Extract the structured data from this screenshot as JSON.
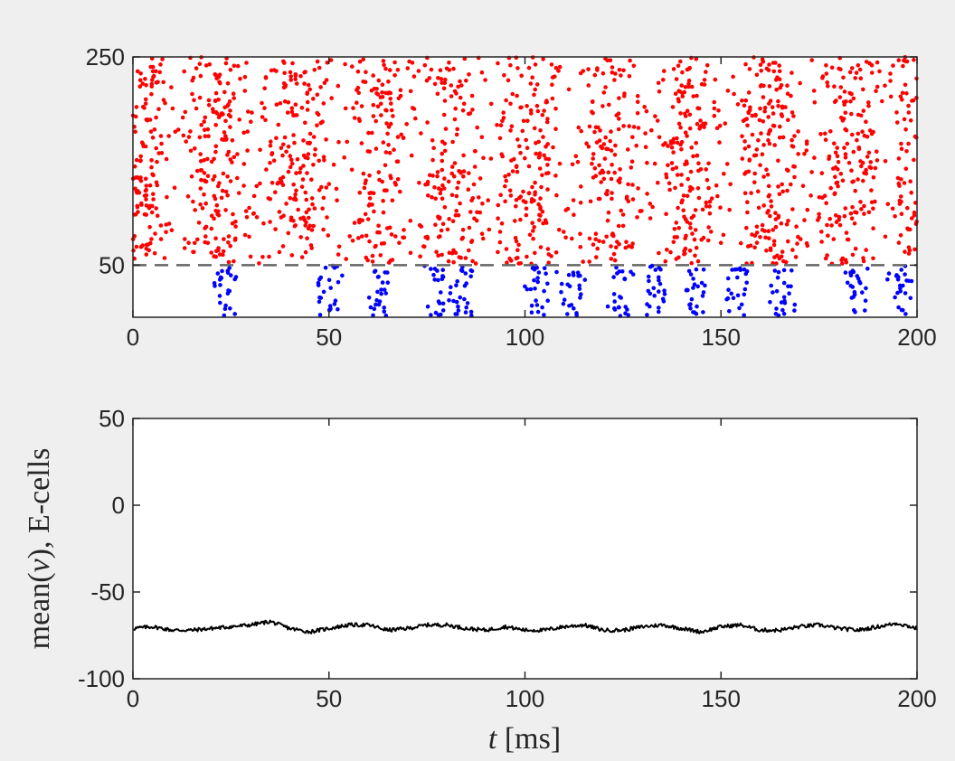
{
  "chart_data": [
    {
      "type": "scatter",
      "title": "",
      "xlabel": "",
      "ylabel": "",
      "xlim": [
        0,
        200
      ],
      "ylim": [
        0,
        250
      ],
      "x_ticks": [
        "0",
        "50",
        "100",
        "150",
        "200"
      ],
      "y_ticks": [
        "50",
        "250"
      ],
      "reference_line": {
        "y": 50,
        "style": "dashed",
        "color": "#666666"
      },
      "grid": false,
      "series": [
        {
          "color": "#ff0000",
          "y_range": [
            51,
            250
          ],
          "approx_spike_count": 1800,
          "rhythm_period_ms": 20
        },
        {
          "color": "#0000ff",
          "y_range": [
            1,
            50
          ],
          "approx_spike_count": 330,
          "bursts_ms": [
            24,
            50,
            63,
            78,
            84,
            103,
            112,
            125,
            133,
            143,
            155,
            165,
            185,
            196
          ]
        }
      ]
    },
    {
      "type": "line",
      "title": "",
      "xlabel_var": "t",
      "xlabel_unit": "[ms]",
      "ylabel_pre": "mean(",
      "ylabel_var": "v",
      "ylabel_post": "), E-cells",
      "xlim": [
        0,
        200
      ],
      "ylim": [
        -100,
        50
      ],
      "x_ticks": [
        "0",
        "50",
        "100",
        "150",
        "200"
      ],
      "y_ticks": [
        "50",
        "0",
        "-50",
        "-100"
      ],
      "grid": false,
      "series": [
        {
          "color": "#000000",
          "x": [
            0,
            5,
            10,
            15,
            20,
            25,
            30,
            35,
            40,
            45,
            50,
            55,
            60,
            65,
            70,
            75,
            80,
            85,
            90,
            95,
            100,
            105,
            110,
            115,
            120,
            125,
            130,
            135,
            140,
            145,
            150,
            155,
            160,
            165,
            170,
            175,
            180,
            185,
            190,
            195,
            200
          ],
          "y": [
            -71,
            -70,
            -72,
            -72,
            -71,
            -70,
            -69,
            -67,
            -71,
            -73,
            -71,
            -69,
            -69,
            -72,
            -71,
            -69,
            -69,
            -71,
            -72,
            -70,
            -72,
            -72,
            -70,
            -69,
            -72,
            -72,
            -70,
            -69,
            -71,
            -73,
            -70,
            -69,
            -72,
            -72,
            -70,
            -69,
            -71,
            -72,
            -70,
            -68,
            -71
          ]
        }
      ]
    }
  ]
}
